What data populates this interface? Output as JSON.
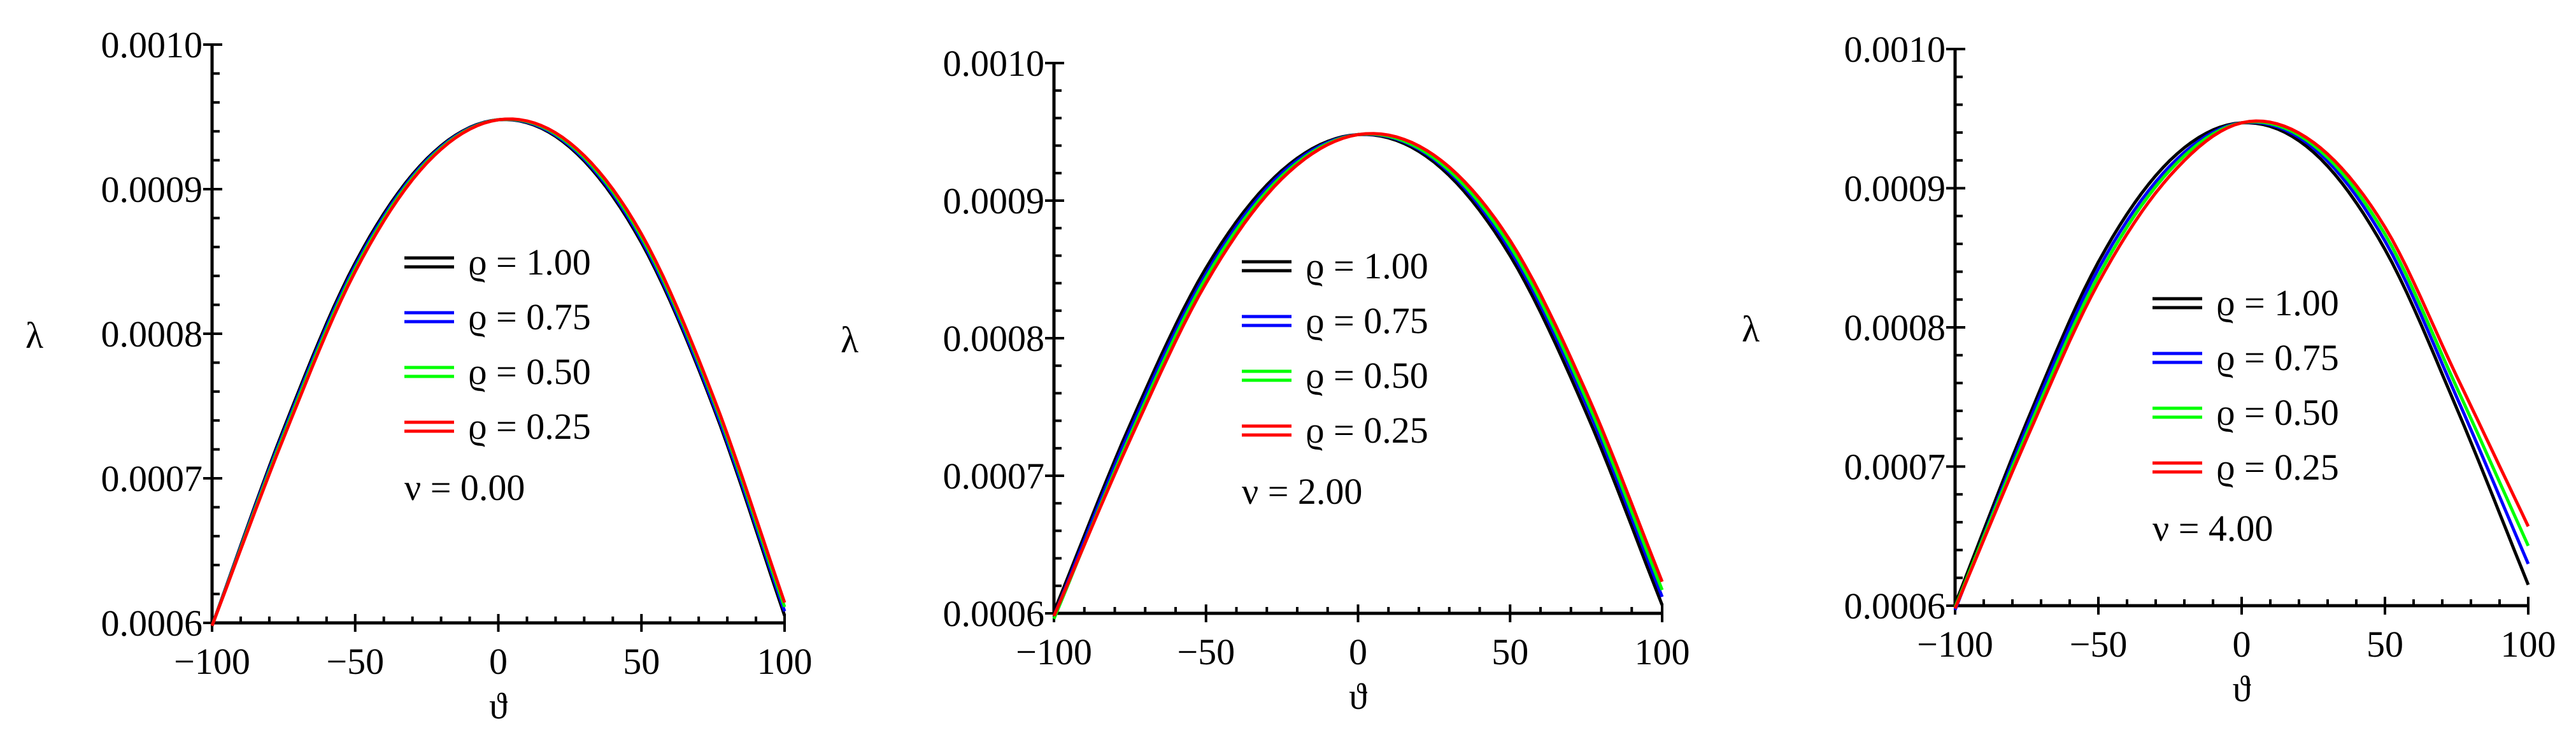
{
  "chart_data": [
    {
      "type": "line",
      "xlabel": "ϑ",
      "ylabel": "λ",
      "xlim": [
        -100,
        100
      ],
      "ylim": [
        0.0006,
        0.001
      ],
      "xticks": [
        "−100",
        "−50",
        "0",
        "50",
        "100"
      ],
      "yticks": [
        "0.0006",
        "0.0007",
        "0.0008",
        "0.0009",
        "0.0010"
      ],
      "legend_location": "center",
      "series": [
        {
          "name": "ϱ = 1.00",
          "color": "#000000",
          "peak_x": 1.5,
          "x": [
            -100,
            -75,
            -50,
            -25,
            0,
            25,
            50,
            75,
            100
          ],
          "y": [
            0.000598,
            0.000734,
            0.000849,
            0.000921,
            0.000948,
            0.000929,
            0.000863,
            0.00075,
            0.000605
          ]
        },
        {
          "name": "ϱ = 0.75",
          "color": "#0000ff",
          "peak_x": 2.5,
          "x": [
            -100,
            -75,
            -50,
            -25,
            0,
            25,
            50,
            75,
            100
          ],
          "y": [
            0.000598,
            0.000732,
            0.000847,
            0.00092,
            0.000948,
            0.00093,
            0.000865,
            0.000752,
            0.000608
          ]
        },
        {
          "name": "ϱ = 0.50",
          "color": "#00ff00",
          "peak_x": 3.5,
          "x": [
            -100,
            -75,
            -50,
            -25,
            0,
            25,
            50,
            75,
            100
          ],
          "y": [
            0.000598,
            0.00073,
            0.000845,
            0.000919,
            0.000948,
            0.000931,
            0.000867,
            0.000755,
            0.000611
          ]
        },
        {
          "name": "ϱ = 0.25",
          "color": "#ff0000",
          "peak_x": 4.5,
          "x": [
            -100,
            -75,
            -50,
            -25,
            0,
            25,
            50,
            75,
            100
          ],
          "y": [
            0.000598,
            0.000728,
            0.000843,
            0.000918,
            0.000948,
            0.000932,
            0.000869,
            0.000757,
            0.000614
          ]
        }
      ],
      "annotation": "ν = 0.00"
    },
    {
      "type": "line",
      "xlabel": "ϑ",
      "ylabel": "λ",
      "xlim": [
        -100,
        100
      ],
      "ylim": [
        0.0006,
        0.001
      ],
      "xticks": [
        "−100",
        "−50",
        "0",
        "50",
        "100"
      ],
      "yticks": [
        "0.0006",
        "0.0007",
        "0.0008",
        "0.0009",
        "0.0010"
      ],
      "legend_location": "center",
      "series": [
        {
          "name": "ϱ = 1.00",
          "color": "#000000",
          "peak_x": 3,
          "x": [
            -100,
            -75,
            -50,
            -25,
            0,
            25,
            50,
            75,
            100
          ],
          "y": [
            0.000601,
            0.000737,
            0.000851,
            0.000922,
            0.000948,
            0.000928,
            0.00086,
            0.000746,
            0.000606
          ]
        },
        {
          "name": "ϱ = 0.75",
          "color": "#0000ff",
          "peak_x": 5,
          "x": [
            -100,
            -75,
            -50,
            -25,
            0,
            25,
            50,
            75,
            100
          ],
          "y": [
            0.000598,
            0.000733,
            0.000847,
            0.00092,
            0.000948,
            0.00093,
            0.000864,
            0.000752,
            0.000612
          ]
        },
        {
          "name": "ϱ = 0.50",
          "color": "#00ff00",
          "peak_x": 7,
          "x": [
            -100,
            -75,
            -50,
            -25,
            0,
            25,
            50,
            75,
            100
          ],
          "y": [
            0.000596,
            0.000729,
            0.000844,
            0.000918,
            0.000948,
            0.000931,
            0.000867,
            0.000756,
            0.000617
          ]
        },
        {
          "name": "ϱ = 0.25",
          "color": "#ff0000",
          "peak_x": 9,
          "x": [
            -100,
            -75,
            -50,
            -25,
            0,
            25,
            50,
            75,
            100
          ],
          "y": [
            0.000598,
            0.000726,
            0.00084,
            0.000916,
            0.000948,
            0.000933,
            0.000871,
            0.000761,
            0.000623
          ]
        }
      ],
      "annotation": "ν = 2.00"
    },
    {
      "type": "line",
      "xlabel": "ϑ",
      "ylabel": "λ",
      "xlim": [
        -100,
        100
      ],
      "ylim": [
        0.0006,
        0.001
      ],
      "xticks": [
        "−100",
        "−50",
        "0",
        "50",
        "100"
      ],
      "yticks": [
        "0.0006",
        "0.0007",
        "0.0008",
        "0.0009",
        "0.0010"
      ],
      "legend_location": "center",
      "series": [
        {
          "name": "ϱ = 1.00",
          "color": "#000000",
          "peak_x": 5,
          "x": [
            -100,
            -75,
            -50,
            -25,
            0,
            25,
            50,
            75,
            100
          ],
          "y": [
            0.000601,
            0.000732,
            0.000847,
            0.00092,
            0.000947,
            0.000926,
            0.000856,
            0.000742,
            0.000615
          ]
        },
        {
          "name": "ϱ = 0.75",
          "color": "#0000ff",
          "peak_x": 8,
          "x": [
            -100,
            -75,
            -50,
            -25,
            0,
            25,
            50,
            75,
            100
          ],
          "y": [
            0.000597,
            0.000728,
            0.000842,
            0.000916,
            0.000947,
            0.000929,
            0.000862,
            0.00075,
            0.00063
          ]
        },
        {
          "name": "ϱ = 0.50",
          "color": "#00ff00",
          "peak_x": 11,
          "x": [
            -100,
            -75,
            -50,
            -25,
            0,
            25,
            50,
            75,
            100
          ],
          "y": [
            0.000599,
            0.000724,
            0.000837,
            0.000913,
            0.000947,
            0.000931,
            0.000867,
            0.000757,
            0.000643
          ]
        },
        {
          "name": "ϱ = 0.25",
          "color": "#ff0000",
          "peak_x": 14,
          "x": [
            -100,
            -75,
            -50,
            -25,
            0,
            25,
            50,
            75,
            100
          ],
          "y": [
            0.000598,
            0.00072,
            0.000832,
            0.000909,
            0.000947,
            0.000933,
            0.000872,
            0.000765,
            0.000657
          ]
        }
      ],
      "annotation": "ν = 4.00"
    }
  ]
}
